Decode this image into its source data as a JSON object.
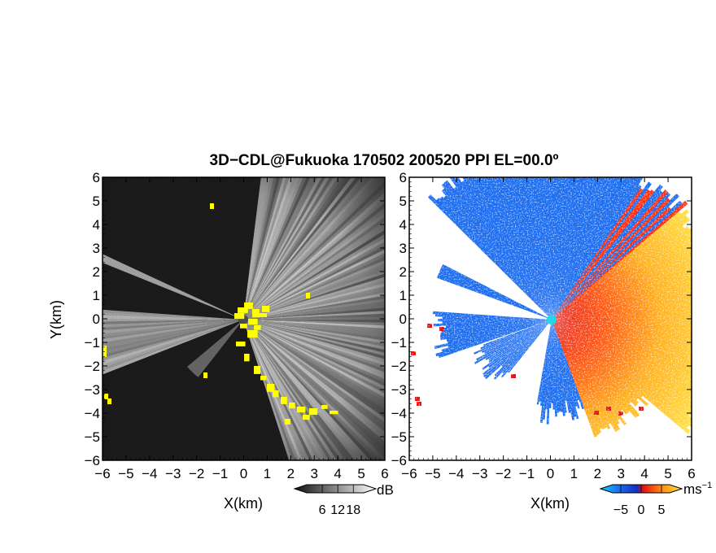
{
  "title": "3D−CDL@Fukuoka 170502 200520 PPI EL=00.0º",
  "chart_data": [
    {
      "type": "heatmap",
      "name": "intensity-ppi",
      "xlabel": "X(km)",
      "ylabel": "Y(km)",
      "xlim": [
        -6,
        6
      ],
      "ylim": [
        -6,
        6
      ],
      "x_ticks": [
        "−6",
        "−5",
        "−4",
        "−3",
        "−2",
        "−1",
        "0",
        "1",
        "2",
        "3",
        "4",
        "5",
        "6"
      ],
      "y_ticks": [
        "6",
        "5",
        "4",
        "3",
        "2",
        "1",
        "0",
        "−1",
        "−2",
        "−3",
        "−4",
        "−5",
        "−6"
      ],
      "colorbar": {
        "ticks": [
          "6",
          "12",
          "18"
        ],
        "unit": "dB",
        "range": [
          0,
          22
        ]
      },
      "colors": {
        "low": "#1c1c1c",
        "high": "#f4f4f4",
        "flag": "#ffff00"
      }
    },
    {
      "type": "heatmap",
      "name": "velocity-ppi",
      "xlabel": "X(km)",
      "xlim": [
        -6,
        6
      ],
      "ylim": [
        -6,
        6
      ],
      "x_ticks": [
        "−6",
        "−5",
        "−4",
        "−3",
        "−2",
        "−1",
        "0",
        "1",
        "2",
        "3",
        "4",
        "5",
        "6"
      ],
      "y_ticks": [
        "6",
        "5",
        "4",
        "3",
        "2",
        "1",
        "0",
        "−1",
        "−2",
        "−3",
        "−4",
        "−5",
        "−6"
      ],
      "colorbar": {
        "ticks": [
          "−5",
          "0",
          "5"
        ],
        "unit": "ms",
        "unit_exp": "−1",
        "range": [
          -7,
          7
        ]
      },
      "colors": {
        "negative": "#1e6ef0",
        "zero": "#e01010",
        "positive": "#ffef40",
        "center": "#20d8e8"
      }
    }
  ]
}
